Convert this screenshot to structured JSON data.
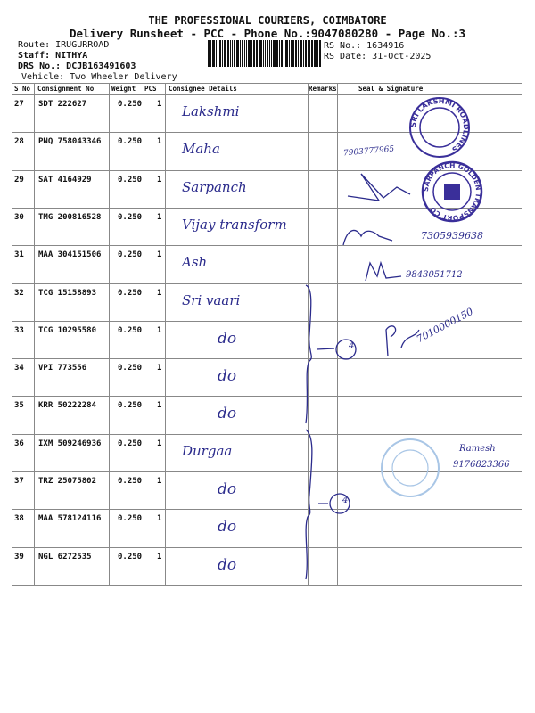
{
  "header": {
    "company": "THE PROFESSIONAL COURIERS, COIMBATORE",
    "subtitle": "Delivery Runsheet - PCC - Phone No.:9047080280 - Page No.:3",
    "route": "Route: IRUGURROAD",
    "staff": "Staff: NITHYA",
    "drs_no": "DRS No.: DCJB163491603",
    "vehicle": "Vehicle: Two Wheeler Delivery",
    "rs_no": "RS No.: 1634916",
    "rs_date": "RS Date: 31-Oct-2025"
  },
  "table": {
    "columns": [
      "S No",
      "Consignment No",
      "Weight",
      "PCS",
      "Consignee Details",
      "Remarks",
      "Seal & Signature"
    ],
    "rows": [
      {
        "sno": "27",
        "consignment": "SDT 222627",
        "weight": "0.250",
        "pcs": "1",
        "consignee": "Lakshmi"
      },
      {
        "sno": "28",
        "consignment": "PNQ 758043346",
        "weight": "0.250",
        "pcs": "1",
        "consignee": "Maha"
      },
      {
        "sno": "29",
        "consignment": "SAT 4164929",
        "weight": "0.250",
        "pcs": "1",
        "consignee": "Sarpanch"
      },
      {
        "sno": "30",
        "consignment": "TMG 200816528",
        "weight": "0.250",
        "pcs": "1",
        "consignee": "Vijay transform"
      },
      {
        "sno": "31",
        "consignment": "MAA 304151506",
        "weight": "0.250",
        "pcs": "1",
        "consignee": "Ash"
      },
      {
        "sno": "32",
        "consignment": "TCG 15158893",
        "weight": "0.250",
        "pcs": "1",
        "consignee": "Sri vaari"
      },
      {
        "sno": "33",
        "consignment": "TCG 10295580",
        "weight": "0.250",
        "pcs": "1",
        "consignee": "do"
      },
      {
        "sno": "34",
        "consignment": "VPI 773556",
        "weight": "0.250",
        "pcs": "1",
        "consignee": "do"
      },
      {
        "sno": "35",
        "consignment": "KRR 50222284",
        "weight": "0.250",
        "pcs": "1",
        "consignee": "do"
      },
      {
        "sno": "36",
        "consignment": "IXM 509246936",
        "weight": "0.250",
        "pcs": "1",
        "consignee": "Durgaa"
      },
      {
        "sno": "37",
        "consignment": "TRZ 25075802",
        "weight": "0.250",
        "pcs": "1",
        "consignee": "do"
      },
      {
        "sno": "38",
        "consignment": "MAA 578124116",
        "weight": "0.250",
        "pcs": "1",
        "consignee": "do"
      },
      {
        "sno": "39",
        "consignment": "NGL 6272535",
        "weight": "0.250",
        "pcs": "1",
        "consignee": "do"
      }
    ]
  },
  "remarks": {
    "group1_count": "4",
    "group2_count": "4"
  },
  "signatures": {
    "row28_phone": "7903777965",
    "row30_phone": "7305939638",
    "row31_phone": "9843051712",
    "row33_phone": "7010000150",
    "row36_name": "Ramesh",
    "row36_phone": "9176823366"
  },
  "stamps": {
    "stamp1": "SRI LAKSHMI ROADLINES",
    "stamp2": "SARPANCH GOLDEN TRANSPORT CO"
  },
  "colors": {
    "ink": "#2b2b8c",
    "stamp": "#3a2f9a",
    "faded_stamp": "#a9c6e6"
  }
}
